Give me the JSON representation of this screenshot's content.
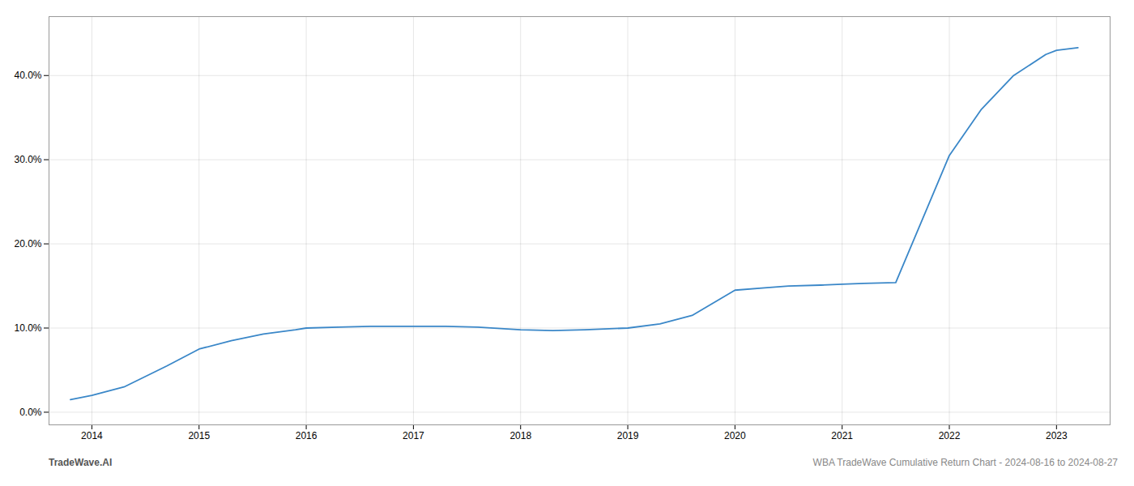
{
  "chart_data": {
    "type": "line",
    "x": [
      2013.8,
      2014.0,
      2014.3,
      2014.7,
      2015.0,
      2015.3,
      2015.6,
      2015.9,
      2016.0,
      2016.3,
      2016.6,
      2017.0,
      2017.3,
      2017.6,
      2018.0,
      2018.3,
      2018.6,
      2019.0,
      2019.3,
      2019.6,
      2020.0,
      2020.3,
      2020.5,
      2020.8,
      2021.0,
      2021.2,
      2021.5,
      2022.0,
      2022.3,
      2022.6,
      2022.9,
      2023.0,
      2023.2
    ],
    "values": [
      1.5,
      2.0,
      3.0,
      5.5,
      7.5,
      8.5,
      9.3,
      9.8,
      10.0,
      10.1,
      10.2,
      10.2,
      10.2,
      10.1,
      9.8,
      9.7,
      9.8,
      10.0,
      10.5,
      11.5,
      14.5,
      14.8,
      15.0,
      15.1,
      15.2,
      15.3,
      15.4,
      30.5,
      36.0,
      40.0,
      42.5,
      43.0,
      43.3
    ],
    "color": "#3a87c8",
    "xlim": [
      2013.6,
      2023.5
    ],
    "ylim": [
      -1.5,
      47
    ],
    "xticks": [
      2014,
      2015,
      2016,
      2017,
      2018,
      2019,
      2020,
      2021,
      2022,
      2023
    ],
    "yticks": [
      {
        "value": 0,
        "label": "0.0%"
      },
      {
        "value": 10,
        "label": "10.0%"
      },
      {
        "value": 20,
        "label": "20.0%"
      },
      {
        "value": 30,
        "label": "30.0%"
      },
      {
        "value": 40,
        "label": "40.0%"
      }
    ],
    "grid": true,
    "annotations": [
      "TradeWave.AI",
      "WBA TradeWave Cumulative Return Chart - 2024-08-16 to 2024-08-27"
    ]
  }
}
